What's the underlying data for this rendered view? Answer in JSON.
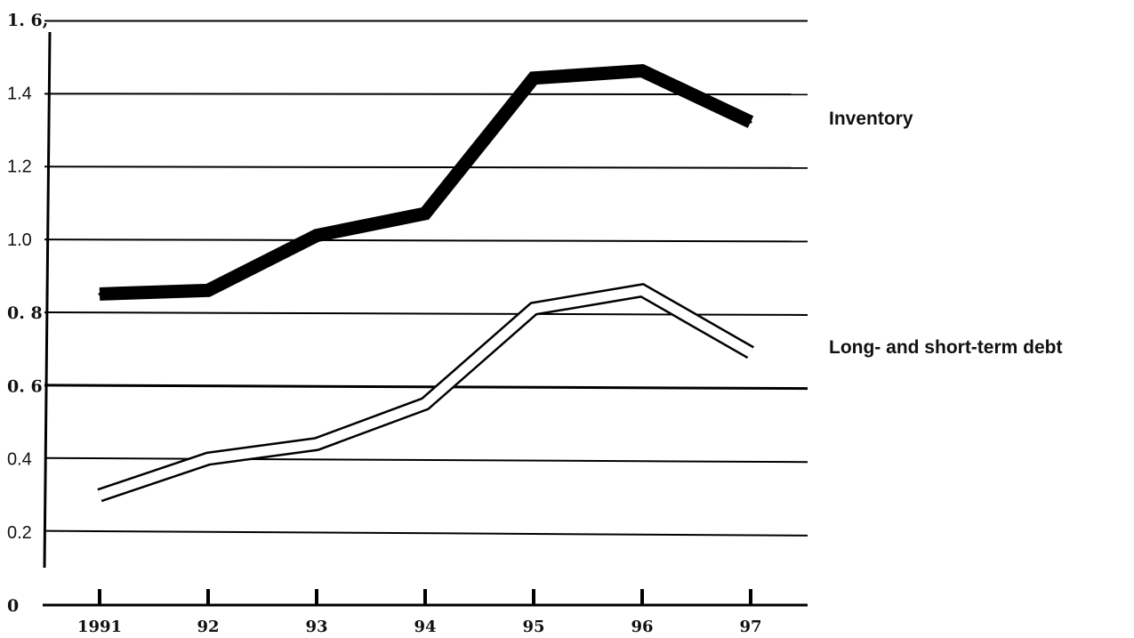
{
  "chart_data": {
    "type": "line",
    "title": "",
    "xlabel": "",
    "ylabel": "",
    "categories": [
      "1991",
      "92",
      "93",
      "94",
      "95",
      "96",
      "97"
    ],
    "y_ticks": [
      {
        "value": 0,
        "label": "0"
      },
      {
        "value": 0.2,
        "label": "0.2"
      },
      {
        "value": 0.4,
        "label": "0.4"
      },
      {
        "value": 0.6,
        "label": "0. 6"
      },
      {
        "value": 0.8,
        "label": "0. 8"
      },
      {
        "value": 1.0,
        "label": "1.0"
      },
      {
        "value": 1.2,
        "label": "1.2"
      },
      {
        "value": 1.4,
        "label": "1.4"
      },
      {
        "value": 1.6,
        "label": "1. 6,"
      }
    ],
    "ylim": [
      0,
      1.6
    ],
    "grid": true,
    "legend": "right, labels beside line ends",
    "series": [
      {
        "name": "Inventory",
        "style": "thick-solid",
        "color": "#000000",
        "values": [
          0.85,
          0.86,
          1.01,
          1.07,
          1.44,
          1.46,
          1.32
        ]
      },
      {
        "name": "Long- and short-term debt",
        "style": "hollow-outline",
        "color": "#000000",
        "values": [
          0.3,
          0.4,
          0.44,
          0.55,
          0.81,
          0.86,
          0.69
        ]
      }
    ]
  }
}
